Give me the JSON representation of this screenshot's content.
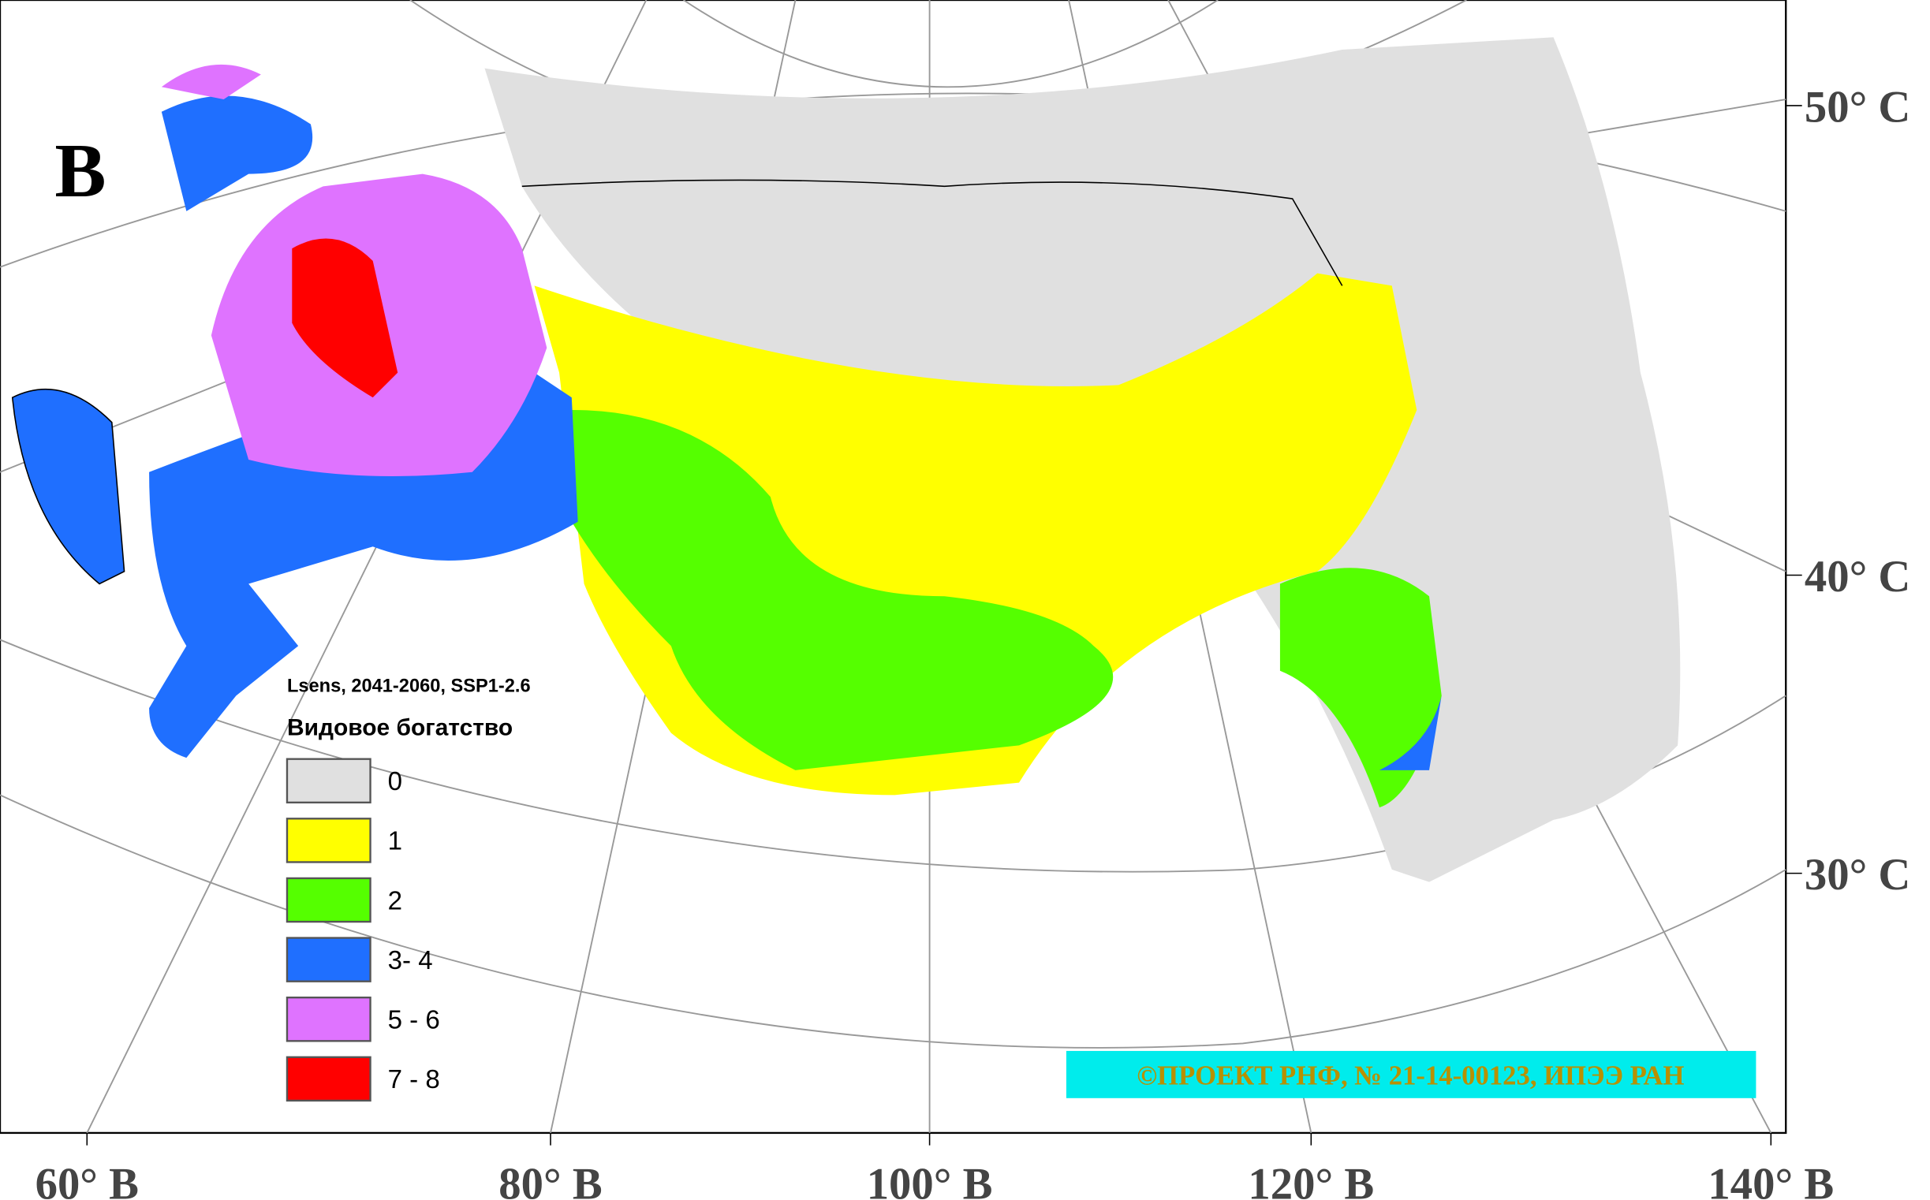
{
  "panel_label": "В",
  "legend": {
    "subtitle": "Lsens, 2041-2060, SSP1-2.6",
    "title": "Видовое богатство",
    "items": [
      {
        "label": "0",
        "color": "#e0e0e0"
      },
      {
        "label": "1",
        "color": "#ffff00"
      },
      {
        "label": "2",
        "color": "#55ff00"
      },
      {
        "label": "3- 4",
        "color": "#1f6fff"
      },
      {
        "label": "5 - 6",
        "color": "#df73ff"
      },
      {
        "label": "7 - 8",
        "color": "#ff0000"
      }
    ]
  },
  "longitude_labels": [
    "60° В",
    "80° В",
    "100° В",
    "120° В",
    "140° В"
  ],
  "latitude_labels": [
    "50° С",
    "40° С",
    "30° С"
  ],
  "credit": "©ПРОЕКТ РНФ, № 21-14-00123, ИПЭЭ РАН"
}
